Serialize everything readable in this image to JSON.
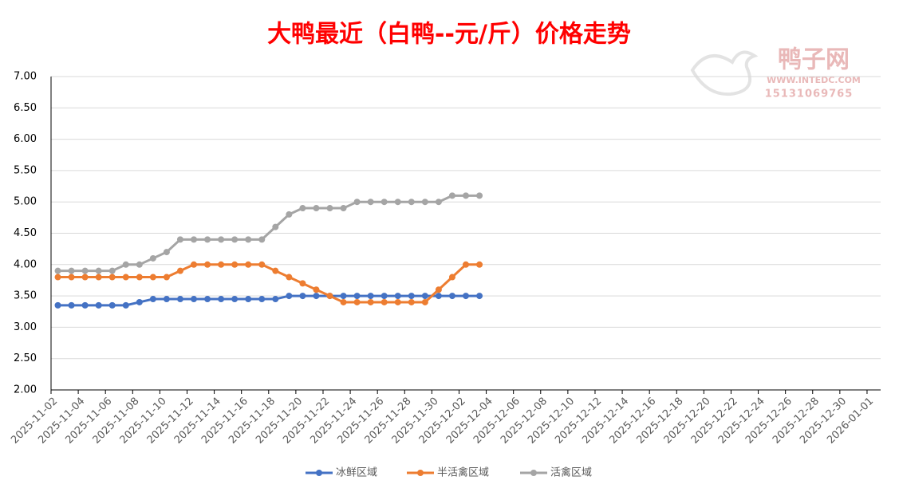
{
  "chart_data": {
    "type": "line",
    "title": "大鸭最近（白鸭--元/斤）价格走势",
    "watermark": {
      "name": "鸭子网",
      "url": "WWW.INTEDC.COM",
      "phone": "15131069765"
    },
    "x": [
      "2025-11-02",
      "2025-11-03",
      "2025-11-04",
      "2025-11-05",
      "2025-11-06",
      "2025-11-07",
      "2025-11-08",
      "2025-11-09",
      "2025-11-10",
      "2025-11-11",
      "2025-11-12",
      "2025-11-13",
      "2025-11-14",
      "2025-11-15",
      "2025-11-16",
      "2025-11-17",
      "2025-11-18",
      "2025-11-19",
      "2025-11-20",
      "2025-11-21",
      "2025-11-22",
      "2025-11-23",
      "2025-11-24",
      "2025-11-25",
      "2025-11-26",
      "2025-11-27",
      "2025-11-28",
      "2025-11-29",
      "2025-11-30",
      "2025-12-01",
      "2025-12-02",
      "2025-12-03"
    ],
    "series": [
      {
        "name": "冰鲜区域",
        "color": "#4472c4",
        "values": [
          3.35,
          3.35,
          3.35,
          3.35,
          3.35,
          3.35,
          3.4,
          3.45,
          3.45,
          3.45,
          3.45,
          3.45,
          3.45,
          3.45,
          3.45,
          3.45,
          3.45,
          3.5,
          3.5,
          3.5,
          3.5,
          3.5,
          3.5,
          3.5,
          3.5,
          3.5,
          3.5,
          3.5,
          3.5,
          3.5,
          3.5,
          3.5
        ]
      },
      {
        "name": "半活禽区域",
        "color": "#ed7d31",
        "values": [
          3.8,
          3.8,
          3.8,
          3.8,
          3.8,
          3.8,
          3.8,
          3.8,
          3.8,
          3.9,
          4.0,
          4.0,
          4.0,
          4.0,
          4.0,
          4.0,
          3.9,
          3.8,
          3.7,
          3.6,
          3.5,
          3.4,
          3.4,
          3.4,
          3.4,
          3.4,
          3.4,
          3.4,
          3.6,
          3.8,
          4.0,
          4.0
        ]
      },
      {
        "name": "活禽区域",
        "color": "#a5a5a5",
        "values": [
          3.9,
          3.9,
          3.9,
          3.9,
          3.9,
          4.0,
          4.0,
          4.1,
          4.2,
          4.4,
          4.4,
          4.4,
          4.4,
          4.4,
          4.4,
          4.4,
          4.6,
          4.8,
          4.9,
          4.9,
          4.9,
          4.9,
          5.0,
          5.0,
          5.0,
          5.0,
          5.0,
          5.0,
          5.0,
          5.1,
          5.1,
          5.1
        ]
      }
    ],
    "xlim": [
      "2025-11-02",
      "2026-01-01"
    ],
    "xticks": [
      "2025-11-02",
      "2025-11-04",
      "2025-11-06",
      "2025-11-08",
      "2025-11-10",
      "2025-11-12",
      "2025-11-14",
      "2025-11-16",
      "2025-11-18",
      "2025-11-20",
      "2025-11-22",
      "2025-11-24",
      "2025-11-26",
      "2025-11-28",
      "2025-11-30",
      "2025-12-02",
      "2025-12-04",
      "2025-12-06",
      "2025-12-08",
      "2025-12-10",
      "2025-12-12",
      "2025-12-14",
      "2025-12-16",
      "2025-12-18",
      "2025-12-20",
      "2025-12-22",
      "2025-12-24",
      "2025-12-26",
      "2025-12-28",
      "2025-12-30",
      "2026-01-01"
    ],
    "ylim": [
      2,
      7
    ],
    "yticks": [
      {
        "value": 2,
        "label": "2.00"
      },
      {
        "value": 2.5,
        "label": "2.50"
      },
      {
        "value": 3,
        "label": "3.00"
      },
      {
        "value": 3.5,
        "label": "3.50"
      },
      {
        "value": 4,
        "label": "4.00"
      },
      {
        "value": 4.5,
        "label": "4.50"
      },
      {
        "value": 5,
        "label": "5.00"
      },
      {
        "value": 5.5,
        "label": "5.50"
      },
      {
        "value": 6,
        "label": "6.00"
      },
      {
        "value": 6.5,
        "label": "6.50"
      },
      {
        "value": 7,
        "label": "7.00"
      }
    ],
    "grid": true,
    "legend": "bottom"
  }
}
